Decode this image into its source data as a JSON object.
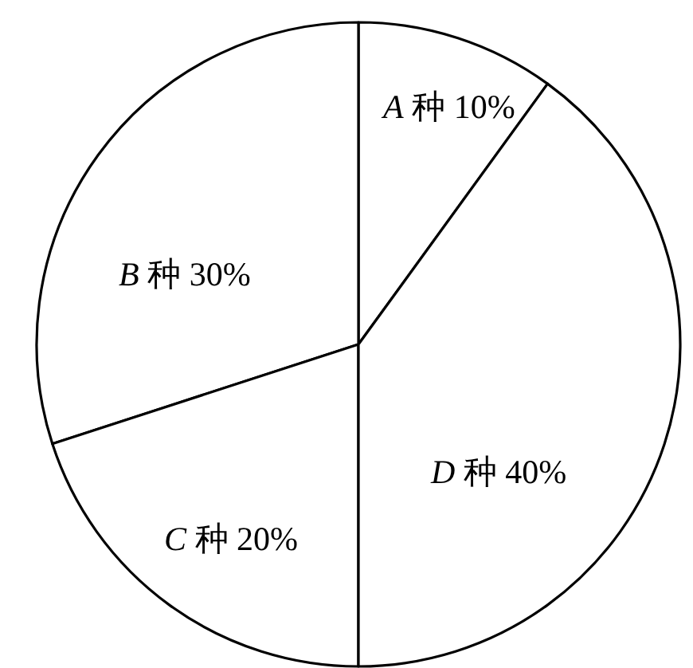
{
  "chart_data": {
    "type": "pie",
    "categories": [
      "*A* 种",
      "*B* 种",
      "*C* 种",
      "*D* 种"
    ],
    "values": [
      10,
      30,
      20,
      40
    ],
    "value_labels": [
      "10%",
      "30%",
      "20%",
      "40%"
    ],
    "colors": [
      "#ffffff",
      "#ffffff",
      "#ffffff",
      "#ffffff"
    ]
  }
}
